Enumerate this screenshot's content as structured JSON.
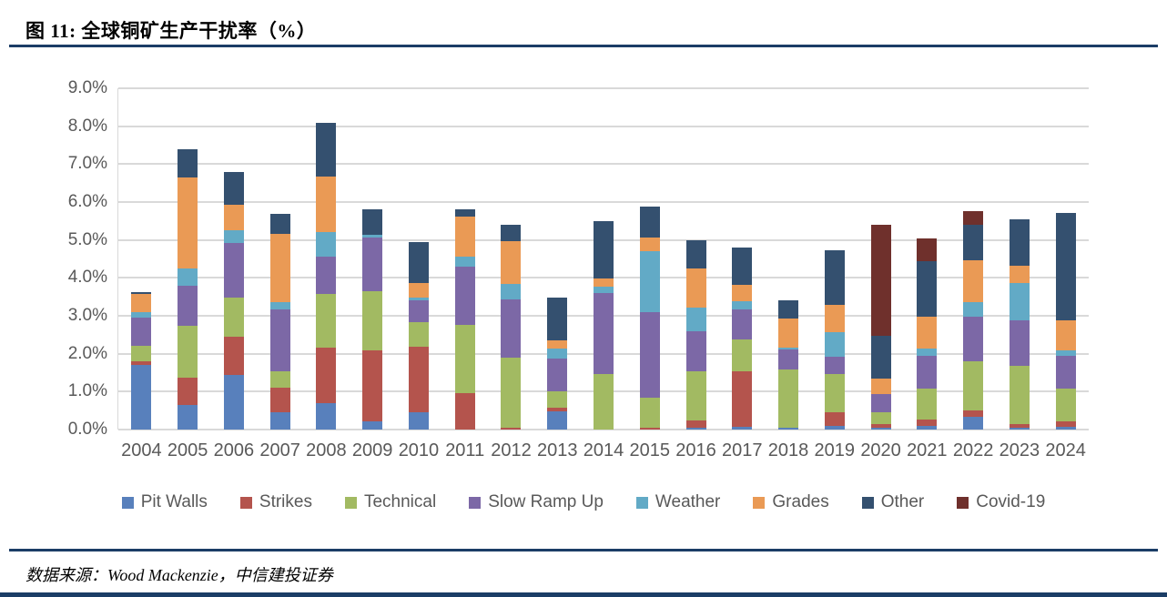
{
  "figure": {
    "title": "图 11: 全球铜矿生产干扰率（%）",
    "source": "数据来源：Wood Mackenzie，中信建投证券"
  },
  "colors": {
    "divider_navy": "#1B3D66",
    "gridline": "#D9D9D9",
    "axis_text": "#595959",
    "legend_text": "#595959",
    "background": "#FFFFFF"
  },
  "chart_data": {
    "type": "bar",
    "stacked": true,
    "title": "全球铜矿生产干扰率（%）",
    "unit": "percent",
    "grid": "horizontal",
    "legend_position": "bottom",
    "ylim": [
      0,
      9
    ],
    "ytick_step": 1,
    "ytick_labels": [
      "0.0%",
      "1.0%",
      "2.0%",
      "3.0%",
      "4.0%",
      "5.0%",
      "6.0%",
      "7.0%",
      "8.0%",
      "9.0%"
    ],
    "categories": [
      "2004",
      "2005",
      "2006",
      "2007",
      "2008",
      "2009",
      "2010",
      "2011",
      "2012",
      "2013",
      "2014",
      "2015",
      "2016",
      "2017",
      "2018",
      "2019",
      "2020",
      "2021",
      "2022",
      "2023",
      "2024"
    ],
    "series": [
      {
        "name": "Pit Walls",
        "color": "#5880BC",
        "values": [
          1.7,
          0.65,
          1.43,
          0.45,
          0.7,
          0.21,
          0.45,
          0.0,
          0.0,
          0.49,
          0.0,
          0.0,
          0.05,
          0.07,
          0.05,
          0.1,
          0.05,
          0.09,
          0.34,
          0.04,
          0.08
        ]
      },
      {
        "name": "Strikes",
        "color": "#B4544D",
        "values": [
          0.1,
          0.72,
          1.03,
          0.66,
          1.47,
          1.88,
          1.74,
          0.97,
          0.05,
          0.08,
          0.0,
          0.06,
          0.2,
          1.46,
          0.0,
          0.35,
          0.09,
          0.17,
          0.16,
          0.1,
          0.13
        ]
      },
      {
        "name": "Technical",
        "color": "#A2BA62",
        "values": [
          0.4,
          1.36,
          1.03,
          0.43,
          1.4,
          1.56,
          0.64,
          1.78,
          1.84,
          0.44,
          1.47,
          0.79,
          1.28,
          0.84,
          1.53,
          1.02,
          0.32,
          0.83,
          1.29,
          1.53,
          0.88
        ]
      },
      {
        "name": "Slow Ramp Up",
        "color": "#7C68A6",
        "values": [
          0.75,
          1.06,
          1.42,
          1.63,
          0.99,
          1.41,
          0.57,
          1.55,
          1.55,
          0.86,
          2.14,
          2.24,
          1.06,
          0.8,
          0.54,
          0.46,
          0.48,
          0.86,
          1.18,
          1.22,
          0.86
        ]
      },
      {
        "name": "Weather",
        "color": "#62AAC6",
        "values": [
          0.15,
          0.45,
          0.35,
          0.2,
          0.66,
          0.08,
          0.07,
          0.26,
          0.4,
          0.26,
          0.16,
          1.61,
          0.62,
          0.22,
          0.04,
          0.64,
          0.0,
          0.18,
          0.39,
          0.98,
          0.14
        ]
      },
      {
        "name": "Grades",
        "color": "#EA9A55",
        "values": [
          0.48,
          2.42,
          0.68,
          1.78,
          1.45,
          0.0,
          0.4,
          1.06,
          1.14,
          0.22,
          0.22,
          0.36,
          1.04,
          0.42,
          0.76,
          0.71,
          0.41,
          0.84,
          1.11,
          0.45,
          0.8
        ]
      },
      {
        "name": "Other",
        "color": "#34506F",
        "values": [
          0.05,
          0.74,
          0.86,
          0.55,
          1.43,
          0.66,
          1.07,
          0.18,
          0.42,
          1.14,
          1.51,
          0.82,
          0.75,
          0.99,
          0.48,
          1.46,
          1.13,
          1.46,
          0.92,
          1.23,
          2.83
        ]
      },
      {
        "name": "Covid-19",
        "color": "#6F302C",
        "values": [
          0.0,
          0.0,
          0.0,
          0.0,
          0.0,
          0.0,
          0.0,
          0.0,
          0.0,
          0.0,
          0.0,
          0.0,
          0.0,
          0.0,
          0.0,
          0.0,
          2.91,
          0.6,
          0.36,
          0.0,
          0.0
        ]
      }
    ]
  }
}
